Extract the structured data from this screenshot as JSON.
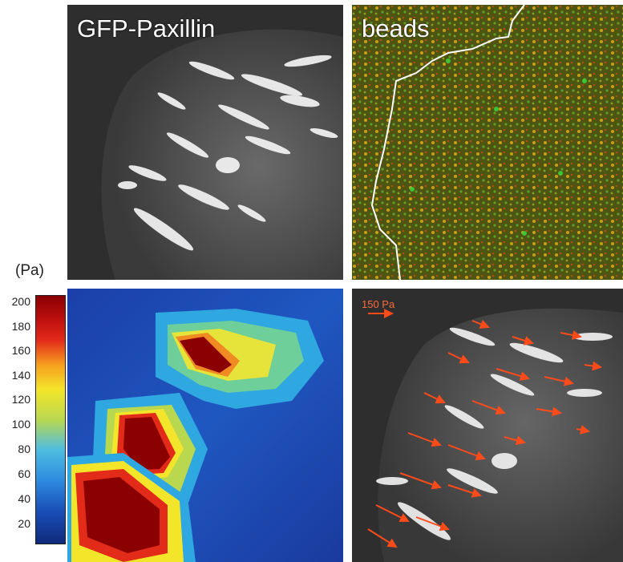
{
  "panels": {
    "top_left_label": "GFP-Paxillin",
    "top_right_label": "beads",
    "bottom_right_scale_label": "150 Pa"
  },
  "colorbar": {
    "unit": "(Pa)",
    "ticks": [
      "200",
      "180",
      "160",
      "140",
      "120",
      "100",
      "80",
      "60",
      "40",
      "20"
    ]
  },
  "colors": {
    "arrow": "#ff4a1a",
    "high": "#8b0000",
    "low": "#1a3ba8"
  }
}
